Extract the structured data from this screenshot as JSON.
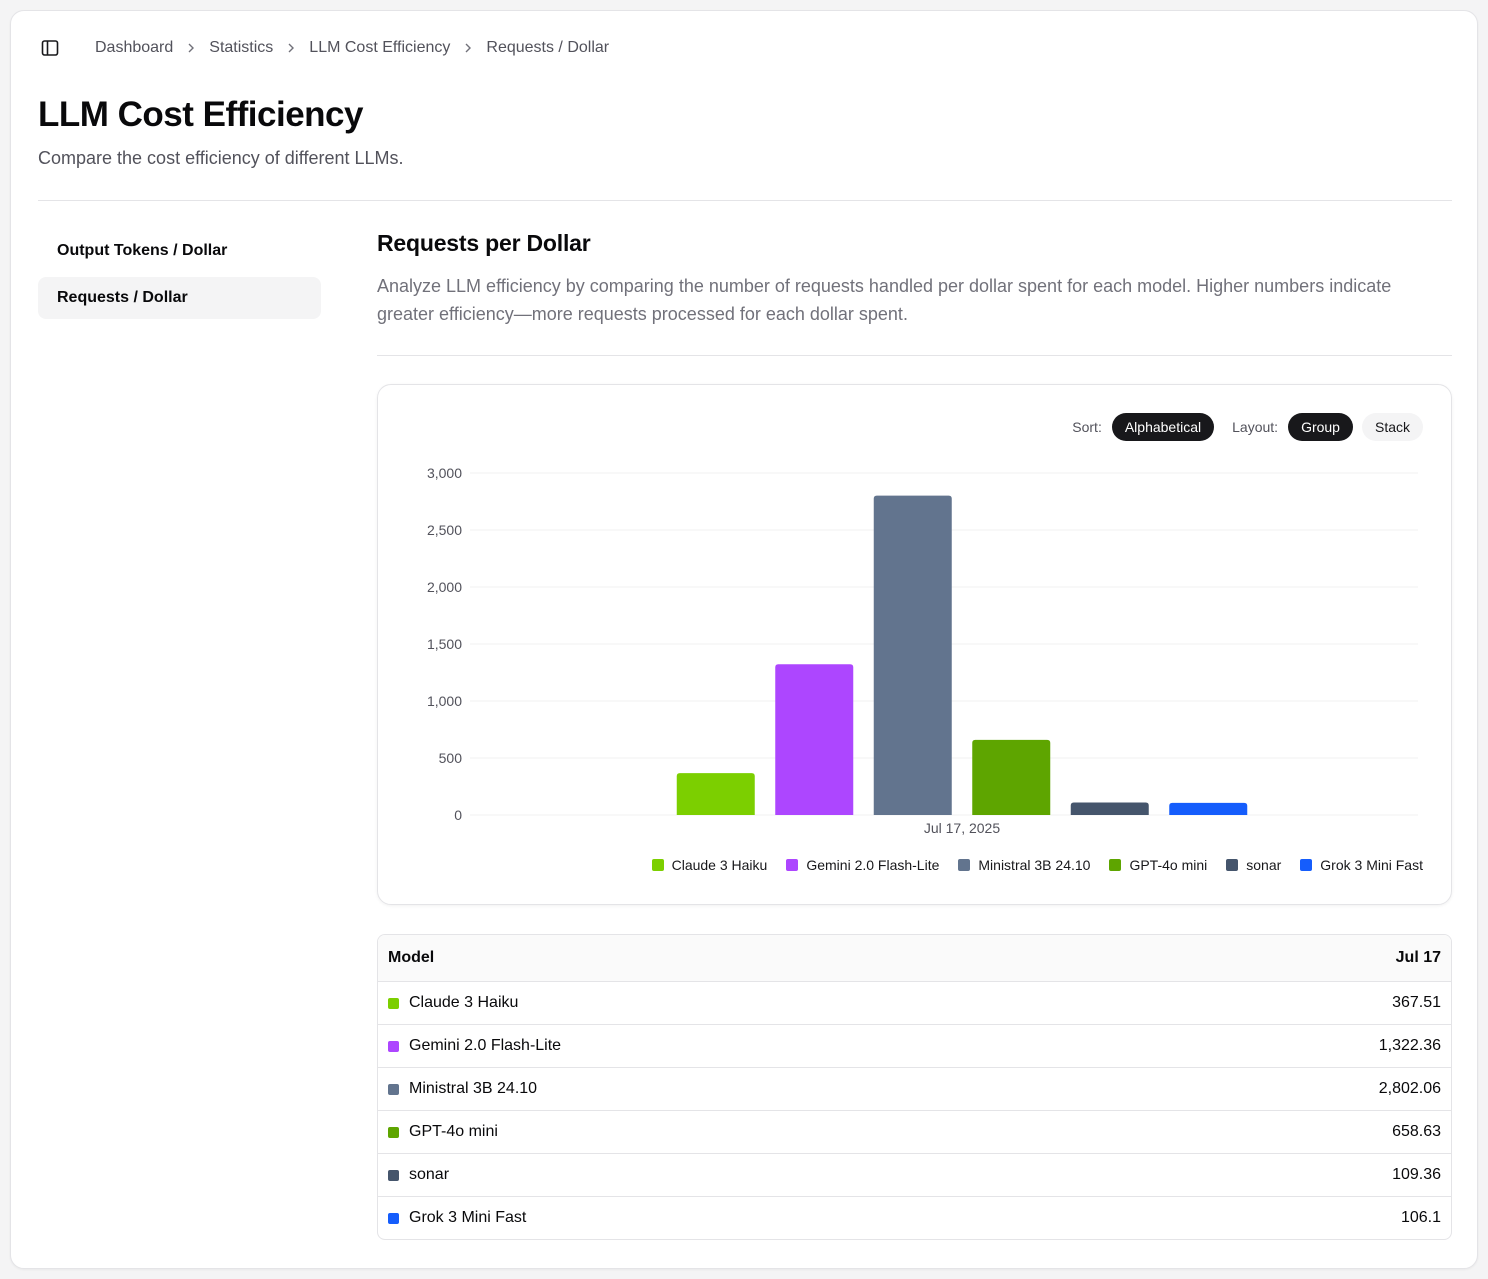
{
  "breadcrumb": {
    "items": [
      "Dashboard",
      "Statistics",
      "LLM Cost Efficiency",
      "Requests / Dollar"
    ]
  },
  "page": {
    "title": "LLM Cost Efficiency",
    "subtitle": "Compare the cost efficiency of different LLMs."
  },
  "sidebar": {
    "items": [
      {
        "label": "Output Tokens / Dollar",
        "active": false
      },
      {
        "label": "Requests / Dollar",
        "active": true
      }
    ]
  },
  "section": {
    "title": "Requests per Dollar",
    "description": "Analyze LLM efficiency by comparing the number of requests handled per dollar spent for each model. Higher numbers indicate greater efficiency—more requests processed for each dollar spent."
  },
  "controls": {
    "sort_label": "Sort:",
    "sort_value": "Alphabetical",
    "layout_label": "Layout:",
    "layout_options": [
      "Group",
      "Stack"
    ],
    "layout_selected": "Group"
  },
  "chart_data": {
    "type": "bar",
    "categories": [
      "Jul 17, 2025"
    ],
    "ylim": [
      0,
      3000
    ],
    "yticks": [
      0,
      500,
      1000,
      1500,
      2000,
      2500,
      3000
    ],
    "ytick_labels": [
      "0",
      "500",
      "1,000",
      "1,500",
      "2,000",
      "2,500",
      "3,000"
    ],
    "grid": true,
    "legend_position": "bottom-right",
    "series": [
      {
        "name": "Claude 3 Haiku",
        "color": "#7ccf00",
        "values": [
          367.51
        ]
      },
      {
        "name": "Gemini 2.0 Flash-Lite",
        "color": "#ad46ff",
        "values": [
          1322.36
        ]
      },
      {
        "name": "Ministral 3B 24.10",
        "color": "#62748e",
        "values": [
          2802.06
        ]
      },
      {
        "name": "GPT-4o mini",
        "color": "#5ea500",
        "values": [
          658.63
        ]
      },
      {
        "name": "sonar",
        "color": "#45556c",
        "values": [
          109.36
        ]
      },
      {
        "name": "Grok 3 Mini Fast",
        "color": "#155dfc",
        "values": [
          106.1
        ]
      }
    ]
  },
  "table": {
    "header_model": "Model",
    "header_date": "Jul 17",
    "rows": [
      {
        "model": "Claude 3 Haiku",
        "value": "367.51",
        "color": "#7ccf00"
      },
      {
        "model": "Gemini 2.0 Flash-Lite",
        "value": "1,322.36",
        "color": "#ad46ff"
      },
      {
        "model": "Ministral 3B 24.10",
        "value": "2,802.06",
        "color": "#62748e"
      },
      {
        "model": "GPT-4o mini",
        "value": "658.63",
        "color": "#5ea500"
      },
      {
        "model": "sonar",
        "value": "109.36",
        "color": "#45556c"
      },
      {
        "model": "Grok 3 Mini Fast",
        "value": "106.1",
        "color": "#155dfc"
      }
    ]
  }
}
